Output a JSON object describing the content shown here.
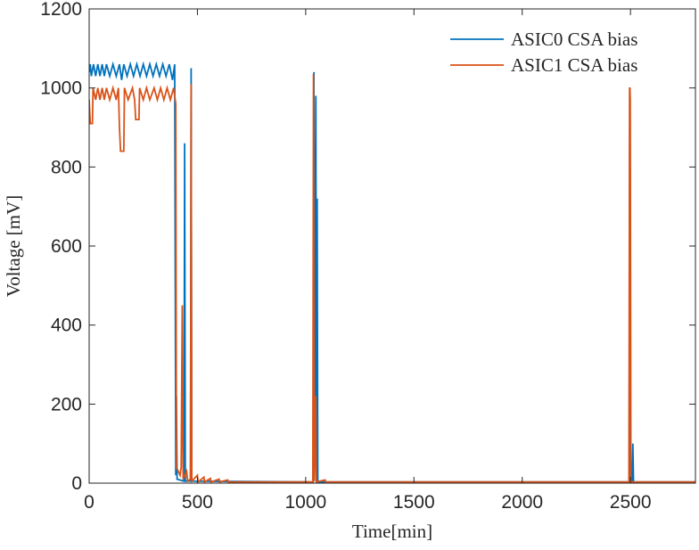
{
  "chart_data": {
    "type": "line",
    "xlabel": "Time[min]",
    "ylabel": "Voltage [mV]",
    "xlim": [
      0,
      2800
    ],
    "ylim": [
      0,
      1200
    ],
    "xticks": [
      0,
      500,
      1000,
      1500,
      2000,
      2500
    ],
    "yticks": [
      0,
      200,
      400,
      600,
      800,
      1000,
      1200
    ],
    "legend": "top-right",
    "series": [
      {
        "name": "ASIC0 CSA bias",
        "color": "#0072BD",
        "x": [
          0,
          5,
          10,
          20,
          30,
          40,
          50,
          60,
          70,
          80,
          95,
          110,
          125,
          140,
          150,
          160,
          175,
          190,
          205,
          220,
          235,
          250,
          265,
          280,
          295,
          310,
          325,
          340,
          355,
          370,
          385,
          395,
          400,
          403,
          406,
          438,
          441,
          444,
          468,
          471,
          474,
          1035,
          1038,
          1041,
          1047,
          1050,
          1053,
          1056,
          2494,
          2497,
          2500,
          2508,
          2511,
          2514,
          2800
        ],
        "values": [
          1040,
          1060,
          1030,
          1060,
          1030,
          1060,
          1030,
          1060,
          1030,
          1060,
          1030,
          1060,
          1030,
          1060,
          1020,
          1060,
          1030,
          1060,
          1030,
          1060,
          1030,
          1060,
          1030,
          1060,
          1030,
          1060,
          1030,
          1060,
          1030,
          1060,
          1020,
          1060,
          20,
          220,
          10,
          5,
          860,
          5,
          5,
          1050,
          5,
          3,
          1040,
          100,
          980,
          5,
          720,
          3,
          3,
          1030,
          5,
          5,
          100,
          3,
          3
        ]
      },
      {
        "name": "ASIC1 CSA bias",
        "color": "#D95319",
        "x": [
          0,
          5,
          15,
          18,
          30,
          40,
          50,
          60,
          70,
          80,
          95,
          110,
          125,
          135,
          140,
          145,
          160,
          163,
          180,
          200,
          210,
          215,
          230,
          233,
          250,
          265,
          280,
          300,
          315,
          330,
          345,
          360,
          375,
          390,
          400,
          403,
          420,
          425,
          430,
          434,
          450,
          455,
          468,
          471,
          474,
          500,
          503,
          530,
          533,
          560,
          563,
          600,
          603,
          640,
          643,
          1033,
          1036,
          1040,
          1046,
          1049,
          1090,
          1093,
          2493,
          2496,
          2499,
          2502,
          2800
        ],
        "values": [
          970,
          910,
          910,
          1000,
          970,
          1000,
          970,
          1000,
          970,
          1000,
          970,
          1000,
          970,
          1000,
          900,
          840,
          840,
          1000,
          970,
          1000,
          970,
          920,
          920,
          1000,
          970,
          1000,
          970,
          1000,
          970,
          1000,
          970,
          1000,
          970,
          1000,
          960,
          40,
          20,
          40,
          450,
          10,
          30,
          5,
          10,
          1010,
          5,
          20,
          3,
          15,
          3,
          12,
          3,
          10,
          3,
          8,
          3,
          3,
          1035,
          5,
          220,
          3,
          8,
          3,
          3,
          1030,
          970,
          3,
          3
        ]
      }
    ]
  }
}
